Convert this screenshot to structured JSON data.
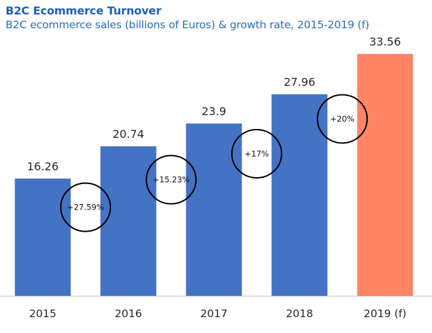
{
  "header": {
    "title": "B2C Ecommerce Turnover",
    "subtitle": "B2C ecommerce sales (billions of Euros) & growth rate, 2015-2019 (f)"
  },
  "colors": {
    "title": "#1f5fb4",
    "subtitle": "#2a6dbf",
    "bar_actual": "#4472c4",
    "bar_forecast": "#ff8566",
    "axis": "#bfbfbf",
    "circle": "#000000"
  },
  "chart_data": {
    "type": "bar",
    "title": "B2C Ecommerce Turnover",
    "subtitle": "B2C ecommerce sales (billions of Euros) & growth rate, 2015-2019 (f)",
    "categories": [
      "2015",
      "2016",
      "2017",
      "2018",
      "2019 (f)"
    ],
    "values": [
      16.26,
      20.74,
      23.9,
      27.96,
      33.56
    ],
    "value_labels": [
      "16.26",
      "20.74",
      "23.9",
      "27.96",
      "33.56"
    ],
    "forecast": [
      false,
      false,
      false,
      false,
      true
    ],
    "growth_rates": [
      "+27.59%",
      "+15.23%",
      "+17%",
      "+20%"
    ],
    "xlabel": "",
    "ylabel": "",
    "ylim": [
      0,
      37.5
    ],
    "grid": false,
    "legend": "none"
  }
}
